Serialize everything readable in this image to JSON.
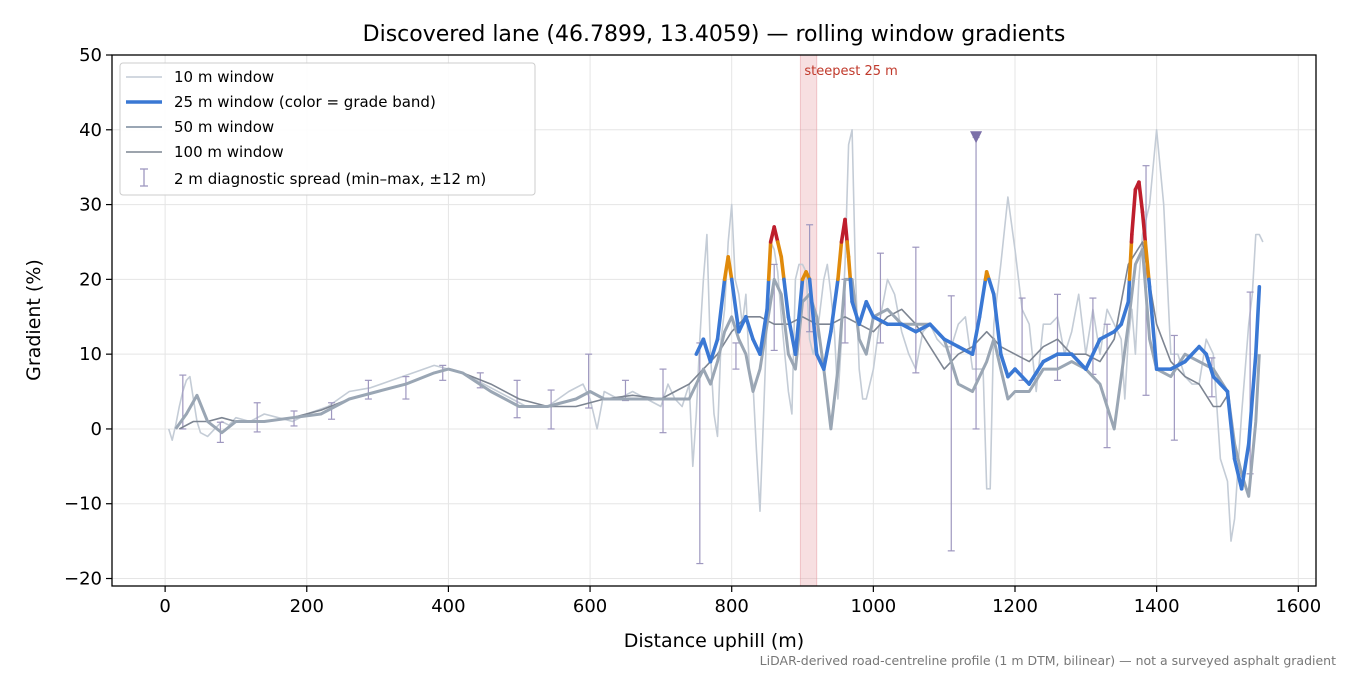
{
  "chart_data": {
    "type": "line",
    "title": "Discovered lane (46.7899, 13.4059) — rolling window gradients",
    "xlabel": "Distance uphill (m)",
    "ylabel": "Gradient (%)",
    "footnote": "LiDAR-derived road-centreline profile (1 m DTM, bilinear) — not a surveyed asphalt gradient",
    "xlim": [
      -75,
      1625
    ],
    "ylim": [
      -21,
      50
    ],
    "x_ticks": [
      0,
      200,
      400,
      600,
      800,
      1000,
      1200,
      1400,
      1600
    ],
    "x_tick_labels": [
      "0",
      "200",
      "400",
      "600",
      "800",
      "1000",
      "1200",
      "1400",
      "1600"
    ],
    "y_ticks": [
      -20,
      -10,
      0,
      10,
      20,
      30,
      40,
      50
    ],
    "y_tick_labels": [
      "−20",
      "−10",
      "0",
      "10",
      "20",
      "30",
      "40",
      "50"
    ],
    "grid": true,
    "legend_position": "top-left",
    "legend": [
      {
        "label": "10 m window",
        "style": "thin-light"
      },
      {
        "label": "25 m window (color = grade band)",
        "style": "thick-blue"
      },
      {
        "label": "50 m window",
        "style": "medium-grey"
      },
      {
        "label": "100 m window",
        "style": "thin-dark"
      },
      {
        "label": "2 m diagnostic spread (min–max, ±12 m)",
        "style": "errorbar"
      }
    ],
    "grade_band_colors": {
      "low": "#3a78d4",
      "mid": "#e08a0b",
      "high": "#be1e2d"
    },
    "grade_band_thresholds": [
      20,
      25
    ],
    "steepest_span": {
      "x_start": 897,
      "x_end": 920,
      "label": "steepest 25 m"
    },
    "marker": {
      "x": 1145,
      "y": 39,
      "shape": "triangle-down"
    },
    "series": [
      {
        "name": "10 m window",
        "color": "#c4ccd6",
        "x": [
          5,
          10,
          15,
          20,
          25,
          30,
          35,
          40,
          45,
          50,
          60,
          70,
          80,
          90,
          100,
          120,
          140,
          160,
          180,
          200,
          230,
          260,
          290,
          320,
          350,
          380,
          400,
          420,
          450,
          480,
          510,
          540,
          570,
          590,
          600,
          610,
          620,
          640,
          660,
          680,
          700,
          710,
          720,
          730,
          740,
          745,
          750,
          755,
          760,
          765,
          770,
          775,
          780,
          785,
          790,
          795,
          800,
          805,
          810,
          815,
          820,
          825,
          830,
          835,
          840,
          845,
          850,
          855,
          860,
          865,
          870,
          875,
          880,
          885,
          890,
          895,
          900,
          905,
          910,
          915,
          920,
          925,
          930,
          935,
          940,
          945,
          950,
          955,
          960,
          965,
          970,
          975,
          980,
          985,
          990,
          1000,
          1010,
          1020,
          1030,
          1040,
          1050,
          1060,
          1070,
          1080,
          1090,
          1100,
          1110,
          1120,
          1130,
          1140,
          1145,
          1150,
          1155,
          1160,
          1165,
          1170,
          1180,
          1190,
          1200,
          1210,
          1220,
          1230,
          1240,
          1250,
          1260,
          1270,
          1280,
          1290,
          1300,
          1310,
          1320,
          1330,
          1340,
          1350,
          1355,
          1360,
          1365,
          1370,
          1375,
          1380,
          1390,
          1400,
          1410,
          1420,
          1430,
          1440,
          1450,
          1460,
          1470,
          1480,
          1490,
          1500,
          1505,
          1510,
          1515,
          1520,
          1525,
          1530,
          1535,
          1540,
          1545,
          1550
        ],
        "y": [
          0,
          -1.5,
          0.5,
          3,
          5,
          6.5,
          7,
          4,
          1,
          -0.5,
          -1,
          0,
          1,
          0.5,
          1.5,
          1,
          2,
          1.5,
          1,
          2,
          3,
          5,
          5.5,
          6.5,
          7.5,
          8.5,
          8,
          7.5,
          6,
          4.5,
          3,
          3,
          5,
          6,
          4,
          0,
          5,
          4,
          5,
          4,
          3,
          6,
          4,
          3,
          6,
          -5,
          2,
          12,
          20,
          26,
          10,
          2,
          -1,
          12,
          16,
          25,
          30,
          20,
          18,
          14,
          18,
          8,
          6,
          -3,
          -11,
          2,
          15,
          25,
          24,
          21,
          15,
          10,
          5,
          2,
          20,
          22,
          22,
          21,
          12,
          10,
          12,
          16,
          20,
          22,
          18,
          13,
          4,
          12,
          22,
          38,
          40,
          20,
          8,
          4,
          4,
          8,
          15,
          20,
          18,
          13,
          10,
          8,
          13,
          14,
          12,
          11,
          11,
          14,
          15,
          8,
          8,
          8,
          8,
          -8,
          -8,
          14,
          22,
          31,
          24,
          16,
          14,
          5,
          14,
          14,
          15,
          10,
          13,
          18,
          10,
          16,
          10,
          16,
          14,
          12,
          4,
          12,
          16,
          10,
          20,
          26,
          30,
          40,
          30,
          10,
          10,
          7,
          6,
          6,
          12,
          10,
          -4,
          -7,
          -15,
          -12,
          -5,
          2,
          8,
          14,
          18,
          26,
          26,
          25
        ]
      },
      {
        "name": "25 m window (color = grade band)",
        "color": "#3a78d4",
        "x": [
          750,
          760,
          770,
          780,
          790,
          795,
          800,
          810,
          820,
          830,
          840,
          850,
          855,
          860,
          870,
          880,
          890,
          900,
          905,
          910,
          920,
          930,
          940,
          950,
          955,
          960,
          965,
          970,
          980,
          990,
          1000,
          1020,
          1040,
          1060,
          1080,
          1100,
          1120,
          1140,
          1150,
          1160,
          1170,
          1180,
          1190,
          1200,
          1220,
          1240,
          1260,
          1280,
          1300,
          1320,
          1340,
          1350,
          1360,
          1365,
          1370,
          1375,
          1380,
          1390,
          1400,
          1420,
          1440,
          1460,
          1470,
          1480,
          1490,
          1500,
          1510,
          1520,
          1530,
          1540,
          1545
        ],
        "y": [
          10,
          12,
          9,
          12,
          20,
          23,
          20,
          13,
          15,
          12,
          10,
          16,
          25,
          27,
          23,
          15,
          10,
          20,
          21,
          20,
          10,
          8,
          13,
          20,
          25,
          28,
          23,
          17,
          14,
          17,
          15,
          14,
          14,
          13,
          14,
          12,
          11,
          10,
          15,
          21,
          18,
          10,
          7,
          8,
          6,
          9,
          10,
          10,
          8,
          12,
          13,
          14,
          17,
          26,
          32,
          33,
          29,
          19,
          8,
          8,
          9,
          11,
          10,
          7,
          6,
          5,
          -4,
          -8,
          -2,
          10,
          19
        ]
      },
      {
        "name": "50 m window",
        "color": "#9aa6b4",
        "x": [
          15,
          30,
          45,
          60,
          80,
          100,
          140,
          180,
          220,
          260,
          300,
          340,
          380,
          400,
          420,
          460,
          500,
          540,
          580,
          600,
          620,
          650,
          680,
          700,
          720,
          740,
          750,
          760,
          770,
          780,
          790,
          800,
          810,
          820,
          830,
          840,
          850,
          860,
          870,
          880,
          890,
          900,
          910,
          920,
          930,
          940,
          950,
          960,
          970,
          980,
          990,
          1000,
          1020,
          1040,
          1060,
          1080,
          1100,
          1120,
          1140,
          1160,
          1170,
          1180,
          1190,
          1200,
          1220,
          1240,
          1260,
          1280,
          1300,
          1320,
          1330,
          1340,
          1360,
          1370,
          1380,
          1390,
          1400,
          1420,
          1440,
          1460,
          1480,
          1500,
          1510,
          1520,
          1530,
          1540,
          1545
        ],
        "y": [
          0,
          2,
          4.5,
          1,
          -0.5,
          1,
          1,
          1.5,
          2,
          4,
          5,
          6,
          7.5,
          8,
          7.5,
          5,
          3,
          3,
          4,
          5,
          4,
          4,
          4,
          4,
          4,
          4,
          6,
          8,
          6,
          9,
          13,
          15,
          12,
          10,
          5,
          8,
          14,
          20,
          18,
          10,
          8,
          17,
          18,
          15,
          8,
          0,
          8,
          20,
          20,
          12,
          10,
          15,
          16,
          14,
          14,
          14,
          12,
          6,
          5,
          9,
          12,
          8,
          4,
          5,
          5,
          8,
          8,
          9,
          8,
          6,
          3,
          0,
          14,
          22,
          24,
          12,
          8,
          7,
          10,
          9,
          8,
          5,
          -2,
          -6,
          -9,
          1,
          10
        ]
      },
      {
        "name": "100 m window",
        "color": "#7d8592",
        "x": [
          20,
          40,
          60,
          80,
          100,
          140,
          180,
          220,
          260,
          300,
          340,
          380,
          400,
          420,
          460,
          500,
          540,
          580,
          620,
          660,
          700,
          720,
          740,
          760,
          780,
          800,
          820,
          840,
          860,
          880,
          900,
          920,
          940,
          960,
          980,
          1000,
          1020,
          1040,
          1060,
          1080,
          1100,
          1120,
          1140,
          1160,
          1180,
          1200,
          1220,
          1240,
          1260,
          1280,
          1300,
          1320,
          1340,
          1360,
          1380,
          1400,
          1420,
          1440,
          1460,
          1480,
          1490,
          1500
        ],
        "y": [
          0,
          1,
          1,
          1.5,
          1,
          1,
          1.5,
          2.5,
          4,
          5,
          6,
          7.5,
          8,
          7.5,
          6,
          4,
          3,
          3,
          4,
          4.5,
          4,
          5,
          6,
          8,
          10,
          13,
          15,
          15,
          14,
          14,
          15,
          14,
          14,
          15,
          14,
          13,
          15,
          16,
          14,
          11,
          8,
          10,
          11,
          13,
          11,
          10,
          9,
          11,
          12,
          10,
          10,
          9,
          12,
          22,
          25,
          14,
          9,
          7,
          6,
          3,
          3,
          4.5
        ]
      }
    ],
    "error_bars": [
      {
        "x": 25,
        "lo": 0,
        "hi": 7.2
      },
      {
        "x": 78,
        "lo": -1.8,
        "hi": 0.9
      },
      {
        "x": 130,
        "lo": -0.4,
        "hi": 3.5
      },
      {
        "x": 182,
        "lo": 0.4,
        "hi": 2.4
      },
      {
        "x": 235,
        "lo": 1.3,
        "hi": 3.5
      },
      {
        "x": 287,
        "lo": 4,
        "hi": 6.5
      },
      {
        "x": 340,
        "lo": 4,
        "hi": 7
      },
      {
        "x": 392,
        "lo": 6.5,
        "hi": 8.5
      },
      {
        "x": 445,
        "lo": 5.5,
        "hi": 7.5
      },
      {
        "x": 497,
        "lo": 1.5,
        "hi": 6.5
      },
      {
        "x": 545,
        "lo": 0,
        "hi": 5.2
      },
      {
        "x": 598,
        "lo": 2.8,
        "hi": 10
      },
      {
        "x": 650,
        "lo": 3.8,
        "hi": 6.5
      },
      {
        "x": 703,
        "lo": -0.5,
        "hi": 8
      },
      {
        "x": 755,
        "lo": -18,
        "hi": 11.5
      },
      {
        "x": 806,
        "lo": 8,
        "hi": 11.5
      },
      {
        "x": 860,
        "lo": 10.5,
        "hi": 22
      },
      {
        "x": 910,
        "lo": 13,
        "hi": 27.3
      },
      {
        "x": 960,
        "lo": 11.5,
        "hi": 20
      },
      {
        "x": 1010,
        "lo": 11.5,
        "hi": 23.5
      },
      {
        "x": 1060,
        "lo": 7.5,
        "hi": 24.3
      },
      {
        "x": 1110,
        "lo": -16.3,
        "hi": 17.8
      },
      {
        "x": 1145,
        "lo": 0,
        "hi": 39
      },
      {
        "x": 1210,
        "lo": 6.5,
        "hi": 17.5
      },
      {
        "x": 1260,
        "lo": 6.5,
        "hi": 18
      },
      {
        "x": 1310,
        "lo": 7.3,
        "hi": 17.5
      },
      {
        "x": 1330,
        "lo": -2.5,
        "hi": 14
      },
      {
        "x": 1385,
        "lo": 4.5,
        "hi": 35.2
      },
      {
        "x": 1425,
        "lo": -1.5,
        "hi": 12.5
      },
      {
        "x": 1478,
        "lo": 4.3,
        "hi": 9.5
      },
      {
        "x": 1532,
        "lo": -6,
        "hi": 18.3
      }
    ]
  }
}
